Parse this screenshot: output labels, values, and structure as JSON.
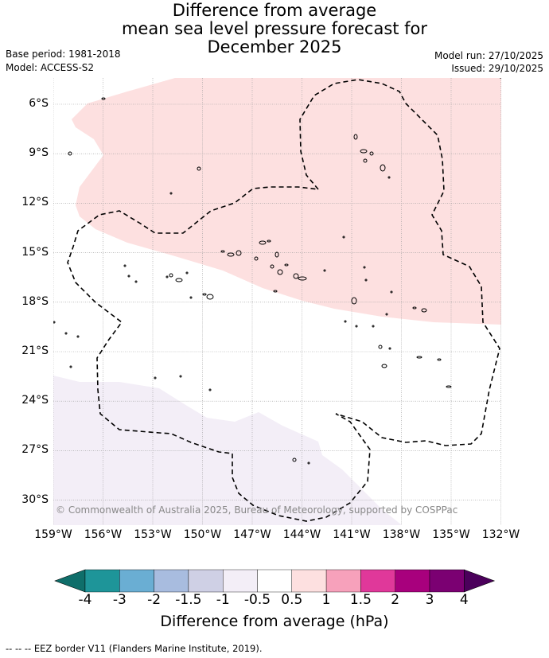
{
  "header": {
    "title_line1": "Difference from average",
    "title_line2": "mean sea level pressure forecast for",
    "title_line3": "December 2025",
    "base_period": "Base period: 1981-2018",
    "model": "Model: ACCESS-S2",
    "model_run": "Model run: 27/10/2025",
    "issued": "Issued: 29/10/2025"
  },
  "map": {
    "lat_labels": [
      "6°S",
      "9°S",
      "12°S",
      "15°S",
      "18°S",
      "21°S",
      "24°S",
      "27°S",
      "30°S"
    ],
    "lon_labels": [
      "159°W",
      "156°W",
      "153°W",
      "150°W",
      "147°W",
      "144°W",
      "141°W",
      "138°W",
      "135°W",
      "132°W"
    ],
    "copyright": "© Commonwealth of Australia 2025, Bureau of Meteorology, supported by COSPPac",
    "colors": {
      "positive_anomaly": "#fde0e0",
      "negative_anomaly": "#f3eef7",
      "eez_border": "#000000",
      "grid": "#999999"
    }
  },
  "colorbar": {
    "label": "Difference from average (hPa)",
    "ticks": [
      "-4",
      "-3",
      "-2",
      "-1.5",
      "-1",
      "-0.5",
      "0.5",
      "1",
      "1.5",
      "2",
      "3",
      "4"
    ],
    "colors": [
      "#0f6e6a",
      "#1e9599",
      "#6aaed3",
      "#a8bcdf",
      "#cfd0e5",
      "#f3eef7",
      "#ffffff",
      "#fde0e0",
      "#f7a1bb",
      "#e0389a",
      "#a8007d",
      "#7b0072",
      "#4b005b"
    ]
  },
  "footer": {
    "legend_text": "--  --  -- EEZ border V11 (Flanders Marine Institute, 2019)."
  }
}
